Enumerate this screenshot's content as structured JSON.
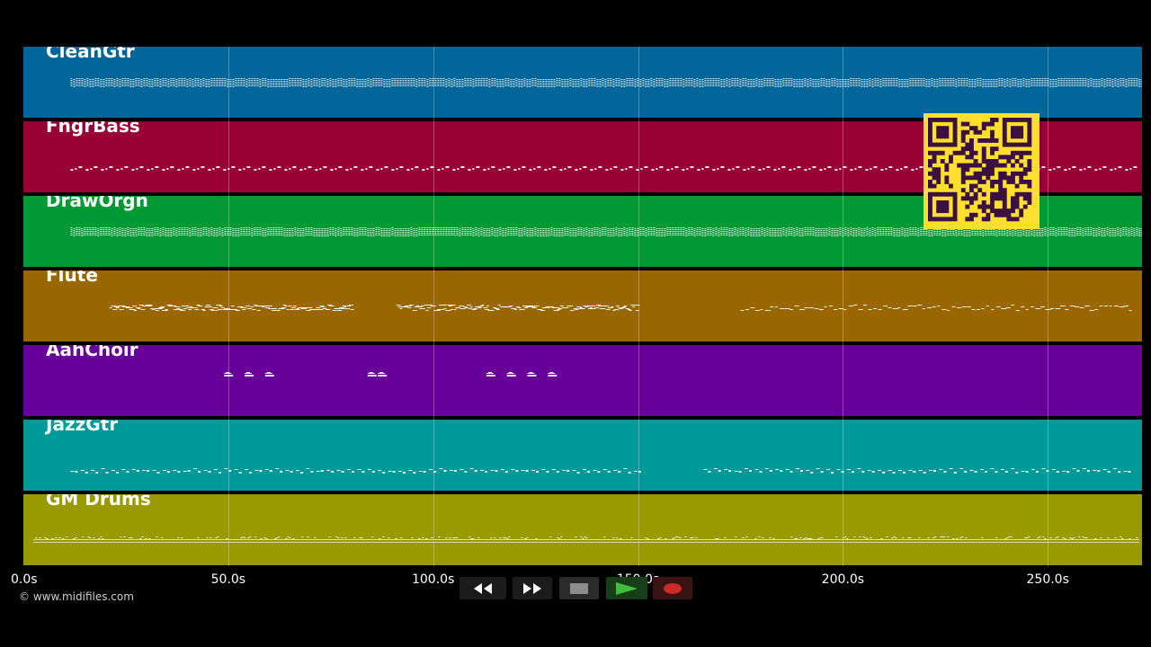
{
  "tracks": [
    {
      "name": "CleanGtr",
      "color": "#006699",
      "pattern": "dense"
    },
    {
      "name": "FngrBass",
      "color": "#990033",
      "pattern": "sparse"
    },
    {
      "name": "DrawOrgn",
      "color": "#009933",
      "pattern": "dense"
    },
    {
      "name": "Flute",
      "color": "#996600",
      "pattern": "phrases"
    },
    {
      "name": "AahChoir",
      "color": "#660099",
      "pattern": "chords"
    },
    {
      "name": "JazzGtr",
      "color": "#009999",
      "pattern": "riff"
    },
    {
      "name": "GM Drums",
      "color": "#999900",
      "pattern": "drums"
    }
  ],
  "timeline": {
    "start_seconds": 0,
    "end_seconds": 273,
    "ticks": [
      {
        "value": 0,
        "label": "0.0s"
      },
      {
        "value": 50,
        "label": "50.0s"
      },
      {
        "value": 100,
        "label": "100.0s"
      },
      {
        "value": 150,
        "label": "150.0s"
      },
      {
        "value": 200,
        "label": "200.0s"
      },
      {
        "value": 250,
        "label": "250.0s"
      }
    ]
  },
  "copyright": "© www.midifiles.com",
  "controls": {
    "rewind_icon": "rewind-icon",
    "fast_forward_icon": "fast-forward-icon",
    "stop_icon": "stop-icon",
    "play_icon": "play-icon",
    "record_icon": "record-icon"
  },
  "qr_code": {
    "color": "#ffdf2d",
    "dark_color": "#3a1140"
  }
}
